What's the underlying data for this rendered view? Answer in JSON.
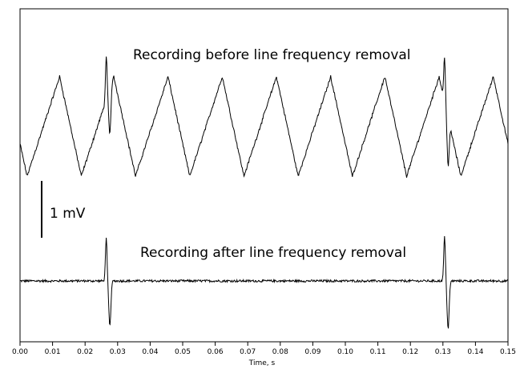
{
  "chart_data": {
    "type": "line",
    "xlabel": "Time, s",
    "xlim": [
      0.0,
      0.15
    ],
    "x_ticks": [
      "0.00",
      "0.01",
      "0.02",
      "0.03",
      "0.04",
      "0.05",
      "0.06",
      "0.07",
      "0.08",
      "0.09",
      "0.10",
      "0.11",
      "0.12",
      "0.13",
      "0.14",
      "0.15"
    ],
    "grid": false,
    "scale_bar": {
      "label": "1 mV",
      "value_mV": 1
    },
    "annotations": {
      "top_trace": "Recording before line frequency removal",
      "bottom_trace": "Recording after line frequency removal"
    },
    "signal": {
      "line_frequency_hz": 60,
      "spike_times_s": [
        0.0265,
        0.1305,
        0.132
      ]
    },
    "series": [
      {
        "key": "before"
      },
      {
        "key": "after"
      }
    ]
  }
}
